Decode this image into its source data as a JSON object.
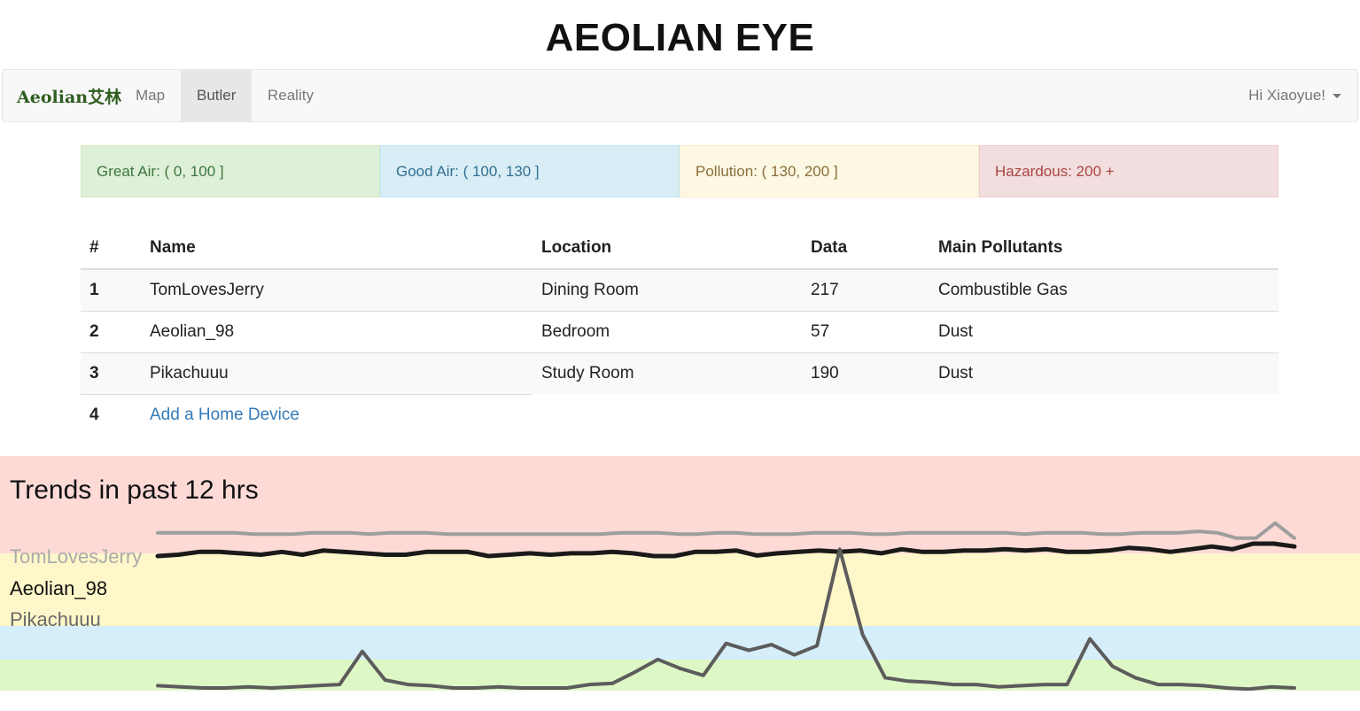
{
  "app_title": "AEOLIAN EYE",
  "navbar": {
    "brand": "Aeolian艾林",
    "items": [
      {
        "label": "Map",
        "active": false
      },
      {
        "label": "Butler",
        "active": true
      },
      {
        "label": "Reality",
        "active": false
      }
    ],
    "user_greeting": "Hi Xiaoyue!"
  },
  "legend": {
    "great": "Great Air: ( 0, 100 ]",
    "good": "Good Air: ( 100, 130 ]",
    "pollution": "Pollution: ( 130, 200 ]",
    "hazardous": "Hazardous: 200 +"
  },
  "table": {
    "headers": {
      "num": "#",
      "name": "Name",
      "location": "Location",
      "data": "Data",
      "pollutants": "Main Pollutants"
    },
    "rows": [
      {
        "num": "1",
        "name": "TomLovesJerry",
        "location": "Dining Room",
        "data": "217",
        "pollutants": "Combustible Gas"
      },
      {
        "num": "2",
        "name": "Aeolian_98",
        "location": "Bedroom",
        "data": "57",
        "pollutants": "Dust"
      },
      {
        "num": "3",
        "name": "Pikachuuu",
        "location": "Study Room",
        "data": "190",
        "pollutants": "Dust"
      }
    ],
    "add_row": {
      "num": "4",
      "label": "Add a Home Device"
    }
  },
  "trends": {
    "title": "Trends in past 12 hrs",
    "bands": [
      {
        "label": "Hazardous",
        "color": "#fddad6"
      },
      {
        "label": "Pollution",
        "color": "#fef7c9"
      },
      {
        "label": "Good Air",
        "color": "#d6eefa"
      },
      {
        "label": "Great Air",
        "color": "#ddf7c5"
      }
    ],
    "series": [
      {
        "name": "TomLovesJerry",
        "color": "#9e9e9e",
        "width": 4,
        "values": [
          217,
          217,
          217,
          217,
          217,
          216,
          216,
          216,
          217,
          217,
          217,
          216,
          217,
          217,
          217,
          216,
          216,
          216,
          216,
          216,
          216,
          216,
          216,
          216,
          217,
          217,
          217,
          216,
          216,
          217,
          217,
          216,
          216,
          216,
          217,
          217,
          217,
          216,
          216,
          217,
          217,
          217,
          217,
          217,
          217,
          216,
          217,
          217,
          217,
          216,
          216,
          217,
          217,
          217,
          218,
          217,
          213,
          213,
          224,
          213
        ]
      },
      {
        "name": "Aeolian_98",
        "color": "#1a1a1a",
        "width": 5,
        "values": [
          200,
          201,
          203,
          203,
          202,
          201,
          203,
          201,
          204,
          203,
          202,
          201,
          201,
          203,
          203,
          203,
          200,
          201,
          202,
          201,
          202,
          202,
          203,
          202,
          200,
          200,
          203,
          203,
          204,
          199,
          202,
          203,
          204,
          203,
          204,
          202,
          205,
          203,
          203,
          204,
          204,
          205,
          204,
          205,
          203,
          203,
          204,
          206,
          205,
          203,
          205,
          207,
          205,
          209,
          209,
          207
        ]
      },
      {
        "name": "Pikachuuu",
        "color": "#5c5c5c",
        "width": 4,
        "values": [
          85,
          84,
          83,
          83,
          84,
          83,
          84,
          85,
          86,
          115,
          90,
          86,
          85,
          83,
          83,
          84,
          83,
          83,
          83,
          86,
          87,
          97,
          108,
          100,
          94,
          122,
          116,
          121,
          112,
          120,
          205,
          130,
          92,
          89,
          88,
          86,
          86,
          84,
          85,
          86,
          86,
          126,
          102,
          92,
          86,
          86,
          85,
          83,
          82,
          84,
          83
        ]
      }
    ]
  }
}
